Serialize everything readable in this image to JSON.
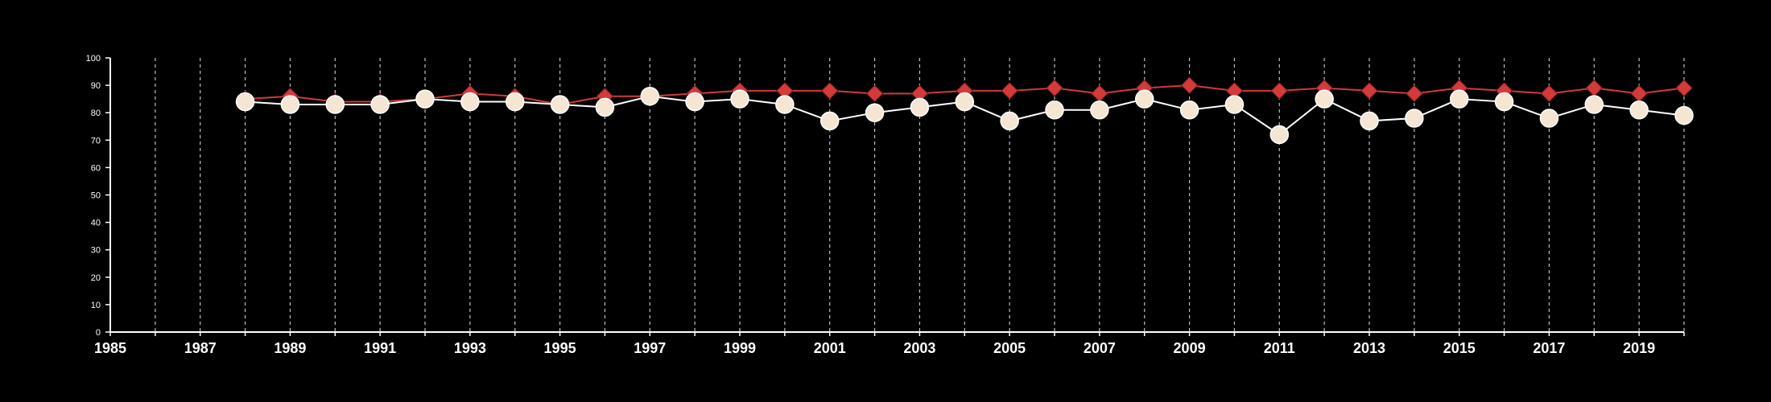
{
  "chart_data": {
    "type": "line",
    "title": "",
    "xlabel": "",
    "ylabel": "",
    "xlim": [
      1985,
      2020
    ],
    "ylim": [
      0,
      100
    ],
    "x_ticks": [
      1985,
      1987,
      1989,
      1991,
      1993,
      1995,
      1997,
      1999,
      2001,
      2003,
      2005,
      2007,
      2009,
      2011,
      2013,
      2015,
      2017,
      2019
    ],
    "y_ticks": [
      0,
      10,
      20,
      30,
      40,
      50,
      60,
      70,
      80,
      90,
      100
    ],
    "grid": "vertical dashed lines at each year",
    "legend": "none",
    "x": [
      1988,
      1989,
      1990,
      1991,
      1992,
      1993,
      1994,
      1995,
      1996,
      1997,
      1998,
      1999,
      2000,
      2001,
      2002,
      2003,
      2004,
      2005,
      2006,
      2007,
      2008,
      2009,
      2010,
      2011,
      2012,
      2013,
      2014,
      2015,
      2016,
      2017,
      2018,
      2019,
      2020
    ],
    "series": [
      {
        "marker": "diamond",
        "color": "#d33a3a",
        "values": [
          85,
          86,
          84,
          84,
          85,
          87,
          86,
          83,
          86,
          86,
          87,
          88,
          88,
          88,
          87,
          87,
          88,
          88,
          89,
          87,
          89,
          90,
          88,
          88,
          89,
          88,
          87,
          89,
          88,
          87,
          89,
          87,
          89
        ]
      },
      {
        "marker": "circle",
        "color": "#f5e6d3",
        "values": [
          84,
          83,
          83,
          83,
          85,
          84,
          84,
          83,
          82,
          86,
          84,
          85,
          83,
          77,
          80,
          82,
          84,
          77,
          81,
          81,
          85,
          81,
          83,
          72,
          85,
          77,
          78,
          85,
          84,
          78,
          83,
          81,
          79
        ]
      }
    ]
  }
}
